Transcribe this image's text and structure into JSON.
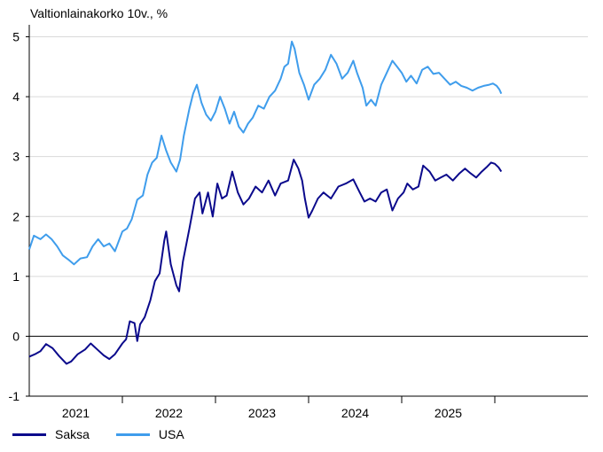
{
  "chart_data": {
    "type": "line",
    "title": "Valtionlainakorko 10v., %",
    "xlabel": "",
    "ylabel": "",
    "ylim": [
      -1,
      5.2
    ],
    "yticks": [
      -1,
      0,
      1,
      2,
      3,
      4,
      5
    ],
    "ytick_labels": [
      "-1",
      "0",
      "1",
      "2",
      "3",
      "4",
      "5"
    ],
    "xlim": [
      2020.0,
      2026.0
    ],
    "year_boundaries": [
      2021.0,
      2022.0,
      2023.0,
      2024.0,
      2025.0
    ],
    "xtick_labels": [
      {
        "label": "2021",
        "at": 2020.5
      },
      {
        "label": "2022",
        "at": 2021.5
      },
      {
        "label": "2023",
        "at": 2022.5
      },
      {
        "label": "2024",
        "at": 2023.5
      },
      {
        "label": "2025",
        "at": 2024.5
      }
    ],
    "grid": true,
    "legend_position": "bottom-left",
    "series": [
      {
        "name": "Saksa",
        "color": "#0b0a8c",
        "points": [
          [
            2020.0,
            -0.34
          ],
          [
            2020.06,
            -0.3
          ],
          [
            2020.12,
            -0.25
          ],
          [
            2020.18,
            -0.13
          ],
          [
            2020.25,
            -0.2
          ],
          [
            2020.32,
            -0.33
          ],
          [
            2020.4,
            -0.46
          ],
          [
            2020.45,
            -0.42
          ],
          [
            2020.52,
            -0.3
          ],
          [
            2020.6,
            -0.22
          ],
          [
            2020.66,
            -0.12
          ],
          [
            2020.73,
            -0.22
          ],
          [
            2020.8,
            -0.32
          ],
          [
            2020.86,
            -0.38
          ],
          [
            2020.92,
            -0.3
          ],
          [
            2021.0,
            -0.12
          ],
          [
            2021.04,
            -0.05
          ],
          [
            2021.08,
            0.25
          ],
          [
            2021.13,
            0.22
          ],
          [
            2021.16,
            -0.08
          ],
          [
            2021.19,
            0.2
          ],
          [
            2021.24,
            0.32
          ],
          [
            2021.3,
            0.6
          ],
          [
            2021.35,
            0.92
          ],
          [
            2021.4,
            1.05
          ],
          [
            2021.45,
            1.6
          ],
          [
            2021.47,
            1.75
          ],
          [
            2021.52,
            1.2
          ],
          [
            2021.58,
            0.85
          ],
          [
            2021.61,
            0.75
          ],
          [
            2021.65,
            1.25
          ],
          [
            2021.72,
            1.8
          ],
          [
            2021.78,
            2.3
          ],
          [
            2021.83,
            2.4
          ],
          [
            2021.86,
            2.05
          ],
          [
            2021.92,
            2.4
          ],
          [
            2021.97,
            2.0
          ],
          [
            2022.02,
            2.55
          ],
          [
            2022.07,
            2.3
          ],
          [
            2022.12,
            2.35
          ],
          [
            2022.18,
            2.75
          ],
          [
            2022.24,
            2.4
          ],
          [
            2022.3,
            2.2
          ],
          [
            2022.36,
            2.3
          ],
          [
            2022.43,
            2.5
          ],
          [
            2022.5,
            2.4
          ],
          [
            2022.57,
            2.6
          ],
          [
            2022.64,
            2.35
          ],
          [
            2022.7,
            2.55
          ],
          [
            2022.78,
            2.6
          ],
          [
            2022.84,
            2.95
          ],
          [
            2022.89,
            2.8
          ],
          [
            2022.93,
            2.6
          ],
          [
            2022.96,
            2.3
          ],
          [
            2023.0,
            1.98
          ],
          [
            2023.04,
            2.1
          ],
          [
            2023.1,
            2.3
          ],
          [
            2023.16,
            2.4
          ],
          [
            2023.24,
            2.3
          ],
          [
            2023.32,
            2.5
          ],
          [
            2023.4,
            2.55
          ],
          [
            2023.48,
            2.62
          ],
          [
            2023.55,
            2.4
          ],
          [
            2023.6,
            2.25
          ],
          [
            2023.66,
            2.3
          ],
          [
            2023.72,
            2.25
          ],
          [
            2023.78,
            2.4
          ],
          [
            2023.84,
            2.45
          ],
          [
            2023.9,
            2.1
          ],
          [
            2023.96,
            2.3
          ],
          [
            2024.02,
            2.4
          ],
          [
            2024.06,
            2.55
          ],
          [
            2024.12,
            2.45
          ],
          [
            2024.18,
            2.5
          ],
          [
            2024.23,
            2.85
          ],
          [
            2024.3,
            2.75
          ],
          [
            2024.36,
            2.6
          ],
          [
            2024.42,
            2.65
          ],
          [
            2024.48,
            2.7
          ],
          [
            2024.55,
            2.6
          ],
          [
            2024.62,
            2.72
          ],
          [
            2024.68,
            2.8
          ],
          [
            2024.74,
            2.72
          ],
          [
            2024.8,
            2.65
          ],
          [
            2024.86,
            2.75
          ],
          [
            2024.91,
            2.82
          ],
          [
            2024.96,
            2.9
          ],
          [
            2025.0,
            2.88
          ],
          [
            2025.04,
            2.82
          ],
          [
            2025.07,
            2.75
          ]
        ]
      },
      {
        "name": "USA",
        "color": "#3f9dec",
        "points": [
          [
            2020.0,
            1.45
          ],
          [
            2020.05,
            1.68
          ],
          [
            2020.12,
            1.62
          ],
          [
            2020.18,
            1.7
          ],
          [
            2020.24,
            1.62
          ],
          [
            2020.3,
            1.5
          ],
          [
            2020.36,
            1.35
          ],
          [
            2020.42,
            1.28
          ],
          [
            2020.48,
            1.2
          ],
          [
            2020.55,
            1.3
          ],
          [
            2020.62,
            1.32
          ],
          [
            2020.68,
            1.5
          ],
          [
            2020.74,
            1.62
          ],
          [
            2020.8,
            1.5
          ],
          [
            2020.86,
            1.55
          ],
          [
            2020.92,
            1.42
          ],
          [
            2021.0,
            1.75
          ],
          [
            2021.05,
            1.8
          ],
          [
            2021.1,
            1.95
          ],
          [
            2021.16,
            2.28
          ],
          [
            2021.22,
            2.35
          ],
          [
            2021.27,
            2.7
          ],
          [
            2021.32,
            2.9
          ],
          [
            2021.37,
            2.98
          ],
          [
            2021.42,
            3.35
          ],
          [
            2021.47,
            3.1
          ],
          [
            2021.52,
            2.9
          ],
          [
            2021.58,
            2.75
          ],
          [
            2021.62,
            2.95
          ],
          [
            2021.66,
            3.35
          ],
          [
            2021.72,
            3.8
          ],
          [
            2021.76,
            4.05
          ],
          [
            2021.8,
            4.2
          ],
          [
            2021.85,
            3.9
          ],
          [
            2021.9,
            3.7
          ],
          [
            2021.95,
            3.6
          ],
          [
            2022.0,
            3.75
          ],
          [
            2022.05,
            4.0
          ],
          [
            2022.1,
            3.8
          ],
          [
            2022.15,
            3.55
          ],
          [
            2022.2,
            3.75
          ],
          [
            2022.25,
            3.5
          ],
          [
            2022.3,
            3.4
          ],
          [
            2022.35,
            3.55
          ],
          [
            2022.4,
            3.65
          ],
          [
            2022.46,
            3.85
          ],
          [
            2022.52,
            3.8
          ],
          [
            2022.58,
            4.0
          ],
          [
            2022.64,
            4.1
          ],
          [
            2022.7,
            4.3
          ],
          [
            2022.74,
            4.5
          ],
          [
            2022.78,
            4.55
          ],
          [
            2022.82,
            4.92
          ],
          [
            2022.85,
            4.8
          ],
          [
            2022.9,
            4.4
          ],
          [
            2022.95,
            4.2
          ],
          [
            2023.0,
            3.95
          ],
          [
            2023.06,
            4.2
          ],
          [
            2023.12,
            4.3
          ],
          [
            2023.18,
            4.45
          ],
          [
            2023.24,
            4.7
          ],
          [
            2023.3,
            4.55
          ],
          [
            2023.36,
            4.3
          ],
          [
            2023.42,
            4.4
          ],
          [
            2023.48,
            4.6
          ],
          [
            2023.52,
            4.4
          ],
          [
            2023.58,
            4.15
          ],
          [
            2023.62,
            3.85
          ],
          [
            2023.67,
            3.95
          ],
          [
            2023.72,
            3.85
          ],
          [
            2023.78,
            4.2
          ],
          [
            2023.84,
            4.4
          ],
          [
            2023.9,
            4.6
          ],
          [
            2023.95,
            4.5
          ],
          [
            2024.0,
            4.4
          ],
          [
            2024.05,
            4.25
          ],
          [
            2024.1,
            4.35
          ],
          [
            2024.16,
            4.22
          ],
          [
            2024.22,
            4.45
          ],
          [
            2024.28,
            4.5
          ],
          [
            2024.34,
            4.38
          ],
          [
            2024.4,
            4.4
          ],
          [
            2024.46,
            4.3
          ],
          [
            2024.52,
            4.2
          ],
          [
            2024.58,
            4.25
          ],
          [
            2024.64,
            4.18
          ],
          [
            2024.7,
            4.15
          ],
          [
            2024.76,
            4.1
          ],
          [
            2024.82,
            4.15
          ],
          [
            2024.88,
            4.18
          ],
          [
            2024.94,
            4.2
          ],
          [
            2024.98,
            4.22
          ],
          [
            2025.02,
            4.18
          ],
          [
            2025.05,
            4.12
          ],
          [
            2025.07,
            4.05
          ]
        ]
      }
    ]
  }
}
